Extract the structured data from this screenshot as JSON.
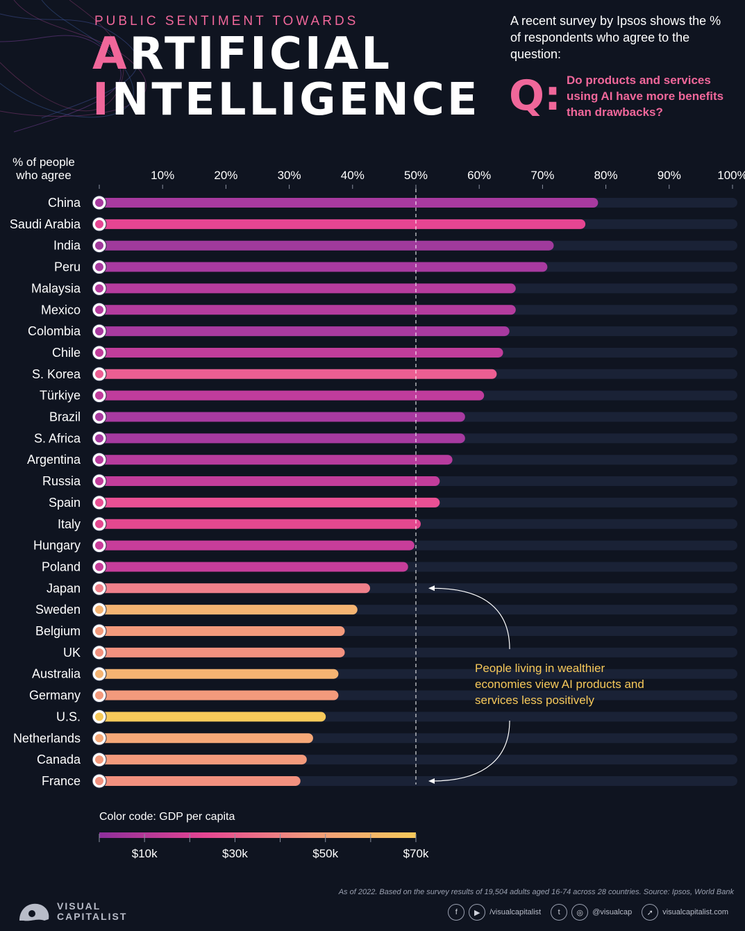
{
  "header": {
    "supertitle": "PUBLIC SENTIMENT TOWARDS",
    "title_line1_cap": "A",
    "title_line1_rest": "RTIFICIAL",
    "title_line2_cap": "I",
    "title_line2_rest": "NTELLIGENCE",
    "intro": "A recent survey by Ipsos shows the % of respondents who agree to the question:",
    "q_label": "Q:",
    "question": "Do products and services using AI have more benefits than drawbacks?"
  },
  "chart_data": {
    "type": "bar",
    "orientation": "horizontal",
    "axis_title": "% of people who agree",
    "x_ticks": [
      "10%",
      "20%",
      "30%",
      "40%",
      "50%",
      "60%",
      "70%",
      "80%",
      "90%",
      "100%"
    ],
    "xlim": [
      0,
      100
    ],
    "reference_line": 50,
    "colors": {
      "magenta": "#a83aa0",
      "pink": "#ea4f95",
      "salmon": "#f0808a",
      "peach": "#f39a7c",
      "orange": "#f5b472",
      "yellow": "#f7c95a",
      "track": "#1a2236"
    },
    "series": [
      {
        "name": "China",
        "value": 78,
        "color": "#a83aa0"
      },
      {
        "name": "Saudi Arabia",
        "value": 76,
        "color": "#e64592"
      },
      {
        "name": "India",
        "value": 71,
        "color": "#a03a9c"
      },
      {
        "name": "Peru",
        "value": 70,
        "color": "#a83aa0"
      },
      {
        "name": "Malaysia",
        "value": 65,
        "color": "#b63c9e"
      },
      {
        "name": "Mexico",
        "value": 65,
        "color": "#b43c9e"
      },
      {
        "name": "Colombia",
        "value": 64,
        "color": "#a83aa0"
      },
      {
        "name": "Chile",
        "value": 63,
        "color": "#c13d9b"
      },
      {
        "name": "S. Korea",
        "value": 62,
        "color": "#ec5e92"
      },
      {
        "name": "Türkiye",
        "value": 60,
        "color": "#c03c9c"
      },
      {
        "name": "Brazil",
        "value": 57,
        "color": "#a83aa0"
      },
      {
        "name": "S. Africa",
        "value": 57,
        "color": "#a63aa0"
      },
      {
        "name": "Argentina",
        "value": 55,
        "color": "#b83c9e"
      },
      {
        "name": "Russia",
        "value": 53,
        "color": "#c23d9b"
      },
      {
        "name": "Spain",
        "value": 53,
        "color": "#ea5094"
      },
      {
        "name": "Italy",
        "value": 50,
        "color": "#e4488f"
      },
      {
        "name": "Hungary",
        "value": 49,
        "color": "#c83d9a"
      },
      {
        "name": "Poland",
        "value": 48,
        "color": "#c63d9a"
      },
      {
        "name": "Japan",
        "value": 42,
        "color": "#f0808a"
      },
      {
        "name": "Sweden",
        "value": 40,
        "color": "#f5b472"
      },
      {
        "name": "Belgium",
        "value": 38,
        "color": "#f39a7c"
      },
      {
        "name": "UK",
        "value": 38,
        "color": "#f2917f"
      },
      {
        "name": "Australia",
        "value": 37,
        "color": "#f5b472"
      },
      {
        "name": "Germany",
        "value": 37,
        "color": "#f39a7c"
      },
      {
        "name": "U.S.",
        "value": 35,
        "color": "#f7c95a"
      },
      {
        "name": "Netherlands",
        "value": 33,
        "color": "#f5a878"
      },
      {
        "name": "Canada",
        "value": 32,
        "color": "#f39a7c"
      },
      {
        "name": "France",
        "value": 31,
        "color": "#f2917f"
      }
    ],
    "color_legend": {
      "title": "Color code: GDP per capita",
      "min": 0,
      "max": 70000,
      "tick_labels": [
        "$10k",
        "$30k",
        "$50k",
        "$70k"
      ],
      "tick_values": [
        10000,
        30000,
        50000,
        70000
      ],
      "gradient": [
        "#8e2f9c",
        "#e64592",
        "#f39a7c",
        "#f7c95a"
      ]
    }
  },
  "annotation": "People living in wealthier economies view AI products and services less positively",
  "footer": {
    "note": "As of 2022. Based on the survey results of 19,504 adults aged 16-74 across 28 countries. Source: Ipsos, World Bank",
    "brand_line1": "VISUAL",
    "brand_line2": "CAPITALIST",
    "social_fb_icon": "f",
    "social_yt_icon": "▶",
    "social_handle_1": "/visualcapitalist",
    "social_tw_icon": "t",
    "social_ig_icon": "◎",
    "social_handle_2": "@visualcap",
    "social_web_icon": "➚",
    "website": "visualcapitalist.com"
  }
}
